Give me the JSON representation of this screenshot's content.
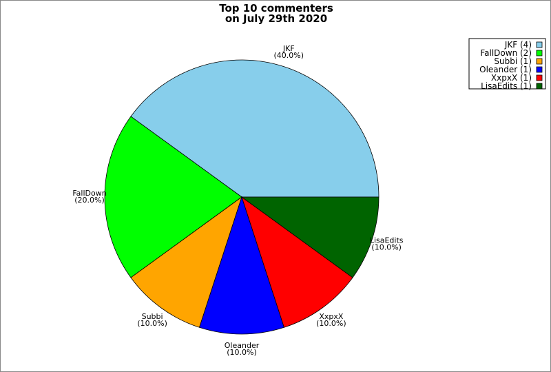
{
  "chart_data": {
    "type": "pie",
    "title": [
      "Top 10 commenters",
      "on July 29th 2020"
    ],
    "slices": [
      {
        "label": "JKF",
        "value": 4,
        "percent": "(40.0%)",
        "legend": "JKF (4)",
        "color": "#87ceeb"
      },
      {
        "label": "FallDown",
        "value": 2,
        "percent": "(20.0%)",
        "legend": "FallDown (2)",
        "color": "#00ff00"
      },
      {
        "label": "Subbi",
        "value": 1,
        "percent": "(10.0%)",
        "legend": "Subbi (1)",
        "color": "#ffa500"
      },
      {
        "label": "Oleander",
        "value": 1,
        "percent": "(10.0%)",
        "legend": "Oleander (1)",
        "color": "#0000ff"
      },
      {
        "label": "XxpxX",
        "value": 1,
        "percent": "(10.0%)",
        "legend": "XxpxX (1)",
        "color": "#ff0000"
      },
      {
        "label": "LisaEdits",
        "value": 1,
        "percent": "(10.0%)",
        "legend": "LisaEdits (1)",
        "color": "#006400"
      }
    ],
    "start_angle_deg": 0,
    "direction": "counterclockwise",
    "legend_position": "top-right"
  }
}
